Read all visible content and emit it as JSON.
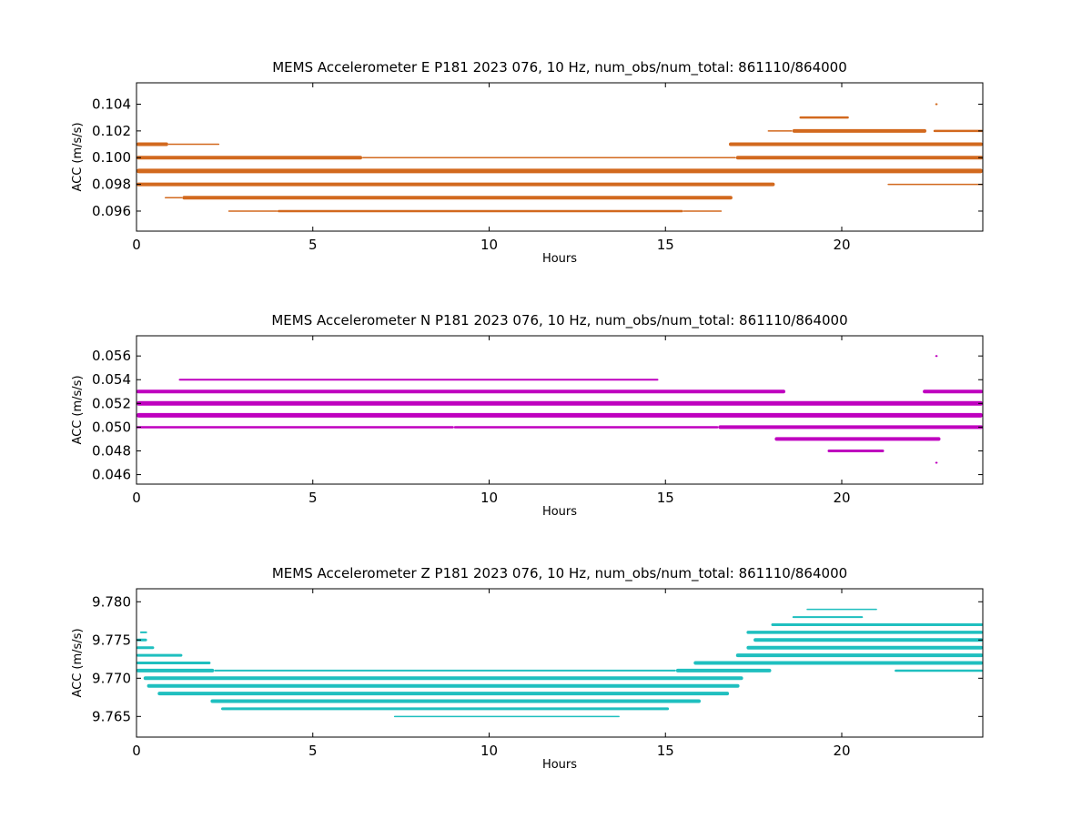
{
  "chart_data": [
    {
      "type": "scatter",
      "title": "MEMS Accelerometer E P181 2023 076, 10 Hz, num_obs/num_total: 861110/864000",
      "xlabel": "Hours",
      "ylabel": "ACC (m/s/s)",
      "xlim": [
        0,
        24
      ],
      "ylim": [
        0.0945,
        0.1056
      ],
      "xticks": [
        "0",
        "5",
        "10",
        "15",
        "20"
      ],
      "yticks": [
        "0.096",
        "0.098",
        "0.100",
        "0.102",
        "0.104"
      ],
      "grid": false,
      "color": "#d2691e",
      "levels": [
        {
          "y": 0.101,
          "segments": [
            [
              0.0,
              0.9,
              4
            ],
            [
              0.9,
              2.35,
              1.5
            ],
            [
              16.8,
              24.0,
              4
            ]
          ]
        },
        {
          "y": 0.1,
          "segments": [
            [
              0.0,
              6.4,
              4
            ],
            [
              6.4,
              17.0,
              1.5
            ],
            [
              17.0,
              24.0,
              4
            ]
          ]
        },
        {
          "y": 0.099,
          "segments": [
            [
              0.0,
              24.0,
              5
            ]
          ]
        },
        {
          "y": 0.098,
          "segments": [
            [
              0.0,
              18.1,
              4
            ],
            [
              21.3,
              24.0,
              1.5
            ]
          ]
        },
        {
          "y": 0.097,
          "segments": [
            [
              0.8,
              1.3,
              1.5
            ],
            [
              1.3,
              16.9,
              4
            ]
          ]
        },
        {
          "y": 0.096,
          "segments": [
            [
              2.6,
              4.0,
              1.5
            ],
            [
              4.0,
              15.5,
              2.5
            ],
            [
              15.5,
              16.6,
              1.5
            ]
          ]
        },
        {
          "y": 0.102,
          "segments": [
            [
              17.9,
              18.6,
              1.5
            ],
            [
              18.6,
              22.4,
              4
            ],
            [
              22.6,
              24.0,
              2.5
            ]
          ]
        },
        {
          "y": 0.103,
          "segments": [
            [
              18.8,
              20.2,
              2.5
            ]
          ]
        },
        {
          "y": 0.104,
          "segments": [
            [
              22.65,
              22.72,
              2
            ]
          ]
        }
      ]
    },
    {
      "type": "scatter",
      "title": "MEMS Accelerometer N P181 2023 076, 10 Hz, num_obs/num_total: 861110/864000",
      "xlabel": "Hours",
      "ylabel": "ACC (m/s/s)",
      "xlim": [
        0,
        24
      ],
      "ylim": [
        0.0452,
        0.0577
      ],
      "xticks": [
        "0",
        "5",
        "10",
        "15",
        "20"
      ],
      "yticks": [
        "0.046",
        "0.048",
        "0.050",
        "0.052",
        "0.054",
        "0.056"
      ],
      "grid": false,
      "color": "#bf00bf",
      "levels": [
        {
          "y": 0.054,
          "segments": [
            [
              1.2,
              14.8,
              2
            ]
          ]
        },
        {
          "y": 0.053,
          "segments": [
            [
              0.0,
              18.4,
              4
            ],
            [
              22.3,
              24.0,
              4
            ]
          ]
        },
        {
          "y": 0.052,
          "segments": [
            [
              0.0,
              24.0,
              5
            ]
          ]
        },
        {
          "y": 0.051,
          "segments": [
            [
              0.0,
              24.0,
              5
            ]
          ]
        },
        {
          "y": 0.05,
          "segments": [
            [
              0.0,
              9.0,
              2.5
            ],
            [
              9.0,
              16.5,
              2.5
            ],
            [
              16.5,
              24.0,
              4
            ]
          ]
        },
        {
          "y": 0.049,
          "segments": [
            [
              18.1,
              22.8,
              4
            ]
          ]
        },
        {
          "y": 0.048,
          "segments": [
            [
              19.6,
              21.2,
              3
            ]
          ]
        },
        {
          "y": 0.056,
          "segments": [
            [
              22.65,
              22.72,
              2
            ]
          ]
        },
        {
          "y": 0.047,
          "segments": [
            [
              22.65,
              22.72,
              2
            ]
          ]
        }
      ]
    },
    {
      "type": "scatter",
      "title": "MEMS Accelerometer Z P181 2023 076, 10 Hz, num_obs/num_total: 861110/864000",
      "xlabel": "Hours",
      "ylabel": "ACC (m/s/s)",
      "xlim": [
        0,
        24
      ],
      "ylim": [
        9.7623,
        9.7817
      ],
      "xticks": [
        "0",
        "5",
        "10",
        "15",
        "20"
      ],
      "yticks": [
        "9.765",
        "9.770",
        "9.775",
        "9.780"
      ],
      "grid": false,
      "color": "#1fbfbf",
      "levels": [
        {
          "y": 9.776,
          "segments": [
            [
              0.1,
              0.3,
              2
            ],
            [
              17.3,
              24.0,
              3.5
            ]
          ]
        },
        {
          "y": 9.775,
          "segments": [
            [
              0.0,
              0.3,
              3
            ],
            [
              17.5,
              24.0,
              4
            ]
          ]
        },
        {
          "y": 9.774,
          "segments": [
            [
              0.0,
              0.5,
              3
            ],
            [
              17.3,
              24.0,
              4
            ]
          ]
        },
        {
          "y": 9.773,
          "segments": [
            [
              0.0,
              1.3,
              3
            ],
            [
              17.0,
              24.0,
              4
            ]
          ]
        },
        {
          "y": 9.772,
          "segments": [
            [
              0.0,
              2.1,
              3
            ],
            [
              15.8,
              24.0,
              4
            ]
          ]
        },
        {
          "y": 9.771,
          "segments": [
            [
              0.0,
              2.2,
              4
            ],
            [
              2.2,
              15.3,
              2
            ],
            [
              15.3,
              18.0,
              4
            ],
            [
              21.5,
              24.0,
              2.5
            ]
          ]
        },
        {
          "y": 9.77,
          "segments": [
            [
              0.2,
              17.2,
              4
            ]
          ]
        },
        {
          "y": 9.769,
          "segments": [
            [
              0.3,
              17.1,
              4
            ]
          ]
        },
        {
          "y": 9.768,
          "segments": [
            [
              0.6,
              16.8,
              4
            ]
          ]
        },
        {
          "y": 9.767,
          "segments": [
            [
              2.1,
              16.0,
              4
            ]
          ]
        },
        {
          "y": 9.766,
          "segments": [
            [
              2.4,
              15.1,
              3
            ]
          ]
        },
        {
          "y": 9.765,
          "segments": [
            [
              7.3,
              13.7,
              1.5
            ]
          ]
        },
        {
          "y": 9.777,
          "segments": [
            [
              18.0,
              24.0,
              3
            ]
          ]
        },
        {
          "y": 9.778,
          "segments": [
            [
              18.6,
              20.6,
              2
            ]
          ]
        },
        {
          "y": 9.779,
          "segments": [
            [
              19.0,
              21.0,
              1.5
            ]
          ]
        }
      ]
    }
  ]
}
